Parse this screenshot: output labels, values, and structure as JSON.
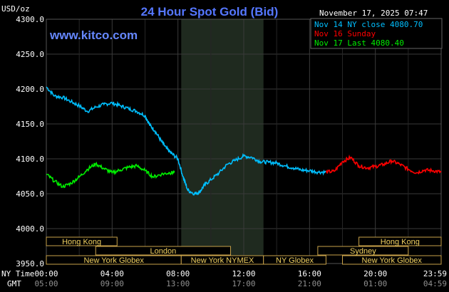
{
  "chart_data": {
    "type": "line",
    "title": "24 Hour Spot Gold (Bid)",
    "brand": "www.kitco.com",
    "ylabel": "USD/oz",
    "timestamp": "November 17, 2025 07:47",
    "ylim": [
      3950,
      4300
    ],
    "xlim_hours": [
      0,
      24
    ],
    "grid": true,
    "legend_position": "top-right",
    "y_ticks": [
      "4300.0",
      "4250.0",
      "4200.0",
      "4150.0",
      "4100.0",
      "4050.0",
      "4000.0",
      "3950.0"
    ],
    "x_tick_labels_ny": [
      "00:00",
      "04:00",
      "08:00",
      "12:00",
      "16:00",
      "20:00",
      "23:59"
    ],
    "x_tick_labels_gmt": [
      "05:00",
      "09:00",
      "13:00",
      "17:00",
      "21:00",
      "01:00",
      "04:59"
    ],
    "x_row_label_ny": "NY Time",
    "x_row_label_gmt": "GMT",
    "colors": {
      "nov14": "#00bfff",
      "nov16": "#ff0000",
      "nov17": "#00ee00",
      "nymex_shade": "#1f2a1f"
    },
    "nymex_window_hours": [
      8.2,
      13.2
    ],
    "series": [
      {
        "name": "Nov 14 NY close 4080.70",
        "color": "#00bfff",
        "x_hours": [
          0,
          0.5,
          1,
          1.5,
          2,
          2.5,
          3,
          3.5,
          4,
          4.5,
          5,
          5.5,
          6,
          6.3,
          6.6,
          7,
          7.3,
          7.6,
          8,
          8.3,
          8.6,
          9,
          9.3,
          9.6,
          10,
          10.5,
          11,
          11.5,
          12,
          12.5,
          13,
          13.5,
          14,
          14.5,
          15,
          15.5,
          16,
          16.5,
          17
        ],
        "values": [
          4203,
          4190,
          4188,
          4182,
          4176,
          4168,
          4174,
          4178,
          4180,
          4176,
          4172,
          4168,
          4162,
          4148,
          4140,
          4125,
          4115,
          4108,
          4100,
          4075,
          4055,
          4050,
          4052,
          4062,
          4070,
          4080,
          4092,
          4098,
          4104,
          4102,
          4096,
          4095,
          4094,
          4090,
          4087,
          4084,
          4083,
          4081,
          4081
        ]
      },
      {
        "name": "Nov 16 Sunday",
        "color": "#ff0000",
        "x_hours": [
          17,
          17.5,
          18,
          18.5,
          19,
          19.5,
          20,
          20.5,
          21,
          21.5,
          22,
          22.5,
          23,
          23.5,
          24
        ],
        "values": [
          4081,
          4082,
          4096,
          4102,
          4090,
          4087,
          4089,
          4092,
          4097,
          4092,
          4085,
          4080,
          4084,
          4083,
          4081
        ]
      },
      {
        "name": "Nov 17 Last 4080.40",
        "color": "#00ee00",
        "x_hours": [
          0,
          0.5,
          1,
          1.5,
          2,
          2.5,
          3,
          3.5,
          4,
          4.5,
          5,
          5.5,
          6,
          6.5,
          7,
          7.5,
          7.78
        ],
        "values": [
          4078,
          4068,
          4060,
          4065,
          4074,
          4085,
          4093,
          4086,
          4080,
          4084,
          4088,
          4090,
          4083,
          4074,
          4078,
          4080,
          4080.4
        ]
      }
    ],
    "sessions": [
      {
        "name": "Hong Kong",
        "start_h": 0,
        "end_h": 4.3
      },
      {
        "name": "London",
        "start_h": 3,
        "end_h": 11.2
      },
      {
        "name": "New York Globex",
        "start_h": 0,
        "end_h": 8.2
      },
      {
        "name": "New York NYMEX",
        "start_h": 8.2,
        "end_h": 13.2
      },
      {
        "name": "NY Globex",
        "start_h": 13.2,
        "end_h": 17
      },
      {
        "name": "Hong Kong",
        "start_h": 19,
        "end_h": 24
      },
      {
        "name": "Sydney",
        "start_h": 16.5,
        "end_h": 22
      },
      {
        "name": "New York Globex",
        "start_h": 18,
        "end_h": 24
      }
    ]
  }
}
